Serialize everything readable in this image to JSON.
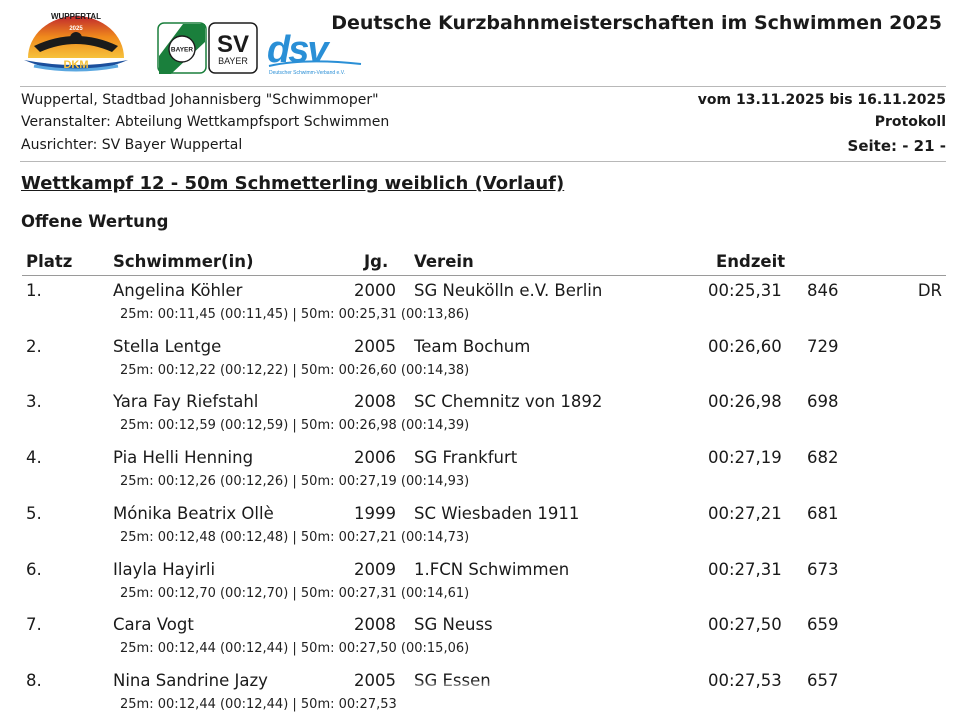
{
  "header": {
    "title": "Deutsche Kurzbahnmeisterschaften im Schwimmen 2025",
    "logos": {
      "dkm_top": "WUPPERTAL",
      "dkm_year": "2025",
      "dkm_mark": "DKM",
      "bayer": "BAYER",
      "sv": "SV",
      "sv_sub": "BAYER",
      "dsv": "dsv",
      "dsv_sub": "Deutscher Schwimm-Verband e.V."
    }
  },
  "info": {
    "venue": "Wuppertal, Stadtbad Johannisberg \"Schwimmoper\"",
    "organizer": "Veranstalter: Abteilung Wettkampfsport Schwimmen",
    "host": "Ausrichter: SV Bayer Wuppertal",
    "dates": "vom 13.11.2025 bis 16.11.2025",
    "doc_type": "Protokoll",
    "page": "Seite: - 21 -"
  },
  "competition": "Wettkampf 12 - 50m Schmetterling weiblich (Vorlauf)",
  "section": "Offene Wertung",
  "columns": {
    "place": "Platz",
    "swimmer": "Schwimmer(in)",
    "year": "Jg.",
    "club": "Verein",
    "time": "Endzeit"
  },
  "results": [
    {
      "place": "1.",
      "name": "Angelina Köhler",
      "year": "2000",
      "club": "SG Neukölln e.V. Berlin",
      "time": "00:25,31",
      "points": "846",
      "note": "DR",
      "splits": "25m: 00:11,45 (00:11,45) | 50m: 00:25,31 (00:13,86)"
    },
    {
      "place": "2.",
      "name": "Stella Lentge",
      "year": "2005",
      "club": "Team Bochum",
      "time": "00:26,60",
      "points": "729",
      "note": "",
      "splits": "25m: 00:12,22 (00:12,22) | 50m: 00:26,60 (00:14,38)"
    },
    {
      "place": "3.",
      "name": "Yara Fay Riefstahl",
      "year": "2008",
      "club": "SC Chemnitz von 1892",
      "time": "00:26,98",
      "points": "698",
      "note": "",
      "splits": "25m: 00:12,59 (00:12,59) | 50m: 00:26,98 (00:14,39)"
    },
    {
      "place": "4.",
      "name": "Pia Helli Henning",
      "year": "2006",
      "club": "SG Frankfurt",
      "time": "00:27,19",
      "points": "682",
      "note": "",
      "splits": "25m: 00:12,26 (00:12,26) | 50m: 00:27,19 (00:14,93)"
    },
    {
      "place": "5.",
      "name": "Mónika Beatrix Ollè",
      "year": "1999",
      "club": "SC Wiesbaden 1911",
      "time": "00:27,21",
      "points": "681",
      "note": "",
      "splits": "25m: 00:12,48 (00:12,48) | 50m: 00:27,21 (00:14,73)"
    },
    {
      "place": "6.",
      "name": "Ilayla Hayirli",
      "year": "2009",
      "club": "1.FCN Schwimmen",
      "time": "00:27,31",
      "points": "673",
      "note": "",
      "splits": "25m: 00:12,70 (00:12,70) | 50m: 00:27,31 (00:14,61)"
    },
    {
      "place": "7.",
      "name": "Cara Vogt",
      "year": "2008",
      "club": "SG Neuss",
      "time": "00:27,50",
      "points": "659",
      "note": "",
      "splits": "25m: 00:12,44 (00:12,44) | 50m: 00:27,50 (00:15,06)"
    },
    {
      "place": "8.",
      "name": "Nina Sandrine Jazy",
      "year": "2005",
      "club": "SG Essen",
      "time": "00:27,53",
      "points": "657",
      "note": "",
      "splits": "25m: 00:12,44 (00:12,44) | 50m: 00:27,53"
    }
  ],
  "colors": {
    "text": "#1a1a1a",
    "rule": "#b8b8b8",
    "dsv_blue": "#2a8fd6",
    "bayer_green": "#1a7f3c",
    "dkm_orange": "#f08a1c",
    "dkm_blue": "#1b4f9c"
  }
}
